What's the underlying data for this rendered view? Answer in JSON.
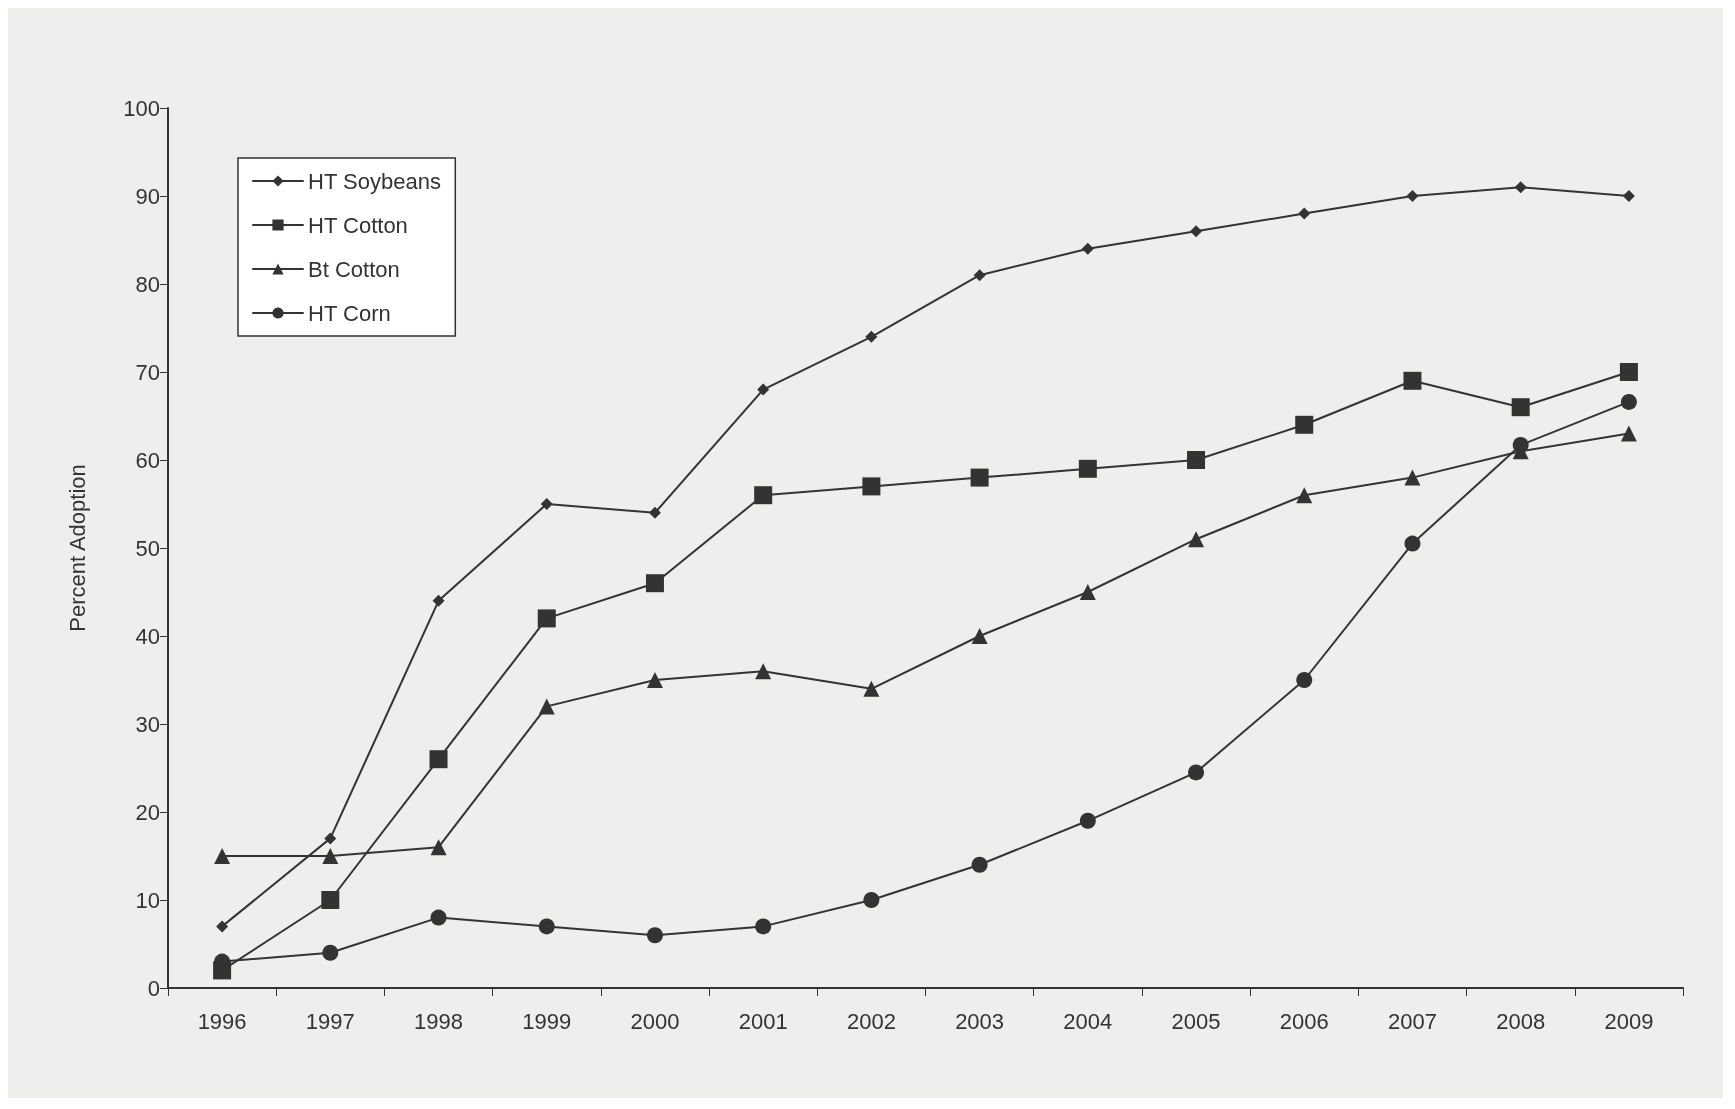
{
  "chart_data": {
    "type": "line",
    "ylabel": "Percent Adoption",
    "categories": [
      "1996",
      "1997",
      "1998",
      "1999",
      "2000",
      "2001",
      "2002",
      "2003",
      "2004",
      "2005",
      "2006",
      "2007",
      "2008",
      "2009"
    ],
    "ylim": [
      0,
      100
    ],
    "yticks": [
      0,
      10,
      20,
      30,
      40,
      50,
      60,
      70,
      80,
      90,
      100
    ],
    "grid": false,
    "legend": "top left",
    "line_style": "solid",
    "series": [
      {
        "name": "HT Soybeans",
        "color": "#333333",
        "marker": "diamond",
        "values": [
          7,
          17,
          44,
          55,
          54,
          68,
          74,
          81,
          84,
          86,
          88,
          90,
          91,
          90
        ]
      },
      {
        "name": "HT Cotton",
        "color": "#333333",
        "marker": "square",
        "values": [
          2,
          10,
          26,
          42,
          46,
          56,
          57,
          58,
          59,
          60,
          64,
          69,
          66,
          70
        ]
      },
      {
        "name": "Bt Cotton",
        "color": "#333333",
        "marker": "triangle",
        "values": [
          15,
          15,
          16,
          32,
          35,
          36,
          34,
          40,
          45,
          51,
          56,
          58,
          61,
          63
        ]
      },
      {
        "name": "HT Corn",
        "color": "#333333",
        "marker": "circle",
        "values": [
          3,
          4,
          8,
          7,
          6,
          7,
          10,
          14,
          19,
          24.5,
          35,
          50.5,
          61.7,
          66.6
        ]
      }
    ]
  }
}
